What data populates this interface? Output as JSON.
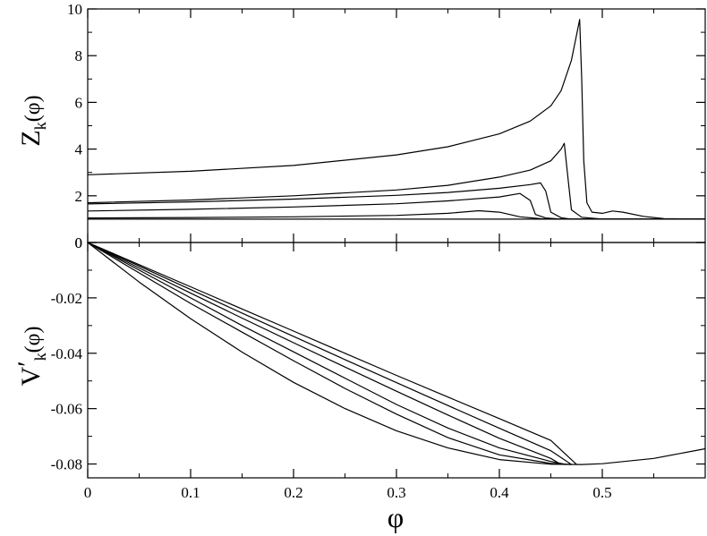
{
  "chart_data": [
    {
      "type": "line",
      "ylabel": "Z_k(φ)",
      "ylabel_main": "Z",
      "ylabel_sub": "k",
      "ylabel_arg": "(φ)",
      "xlim": [
        0,
        0.6
      ],
      "ylim": [
        0,
        10
      ],
      "yticks": [
        0,
        2,
        4,
        6,
        8,
        10
      ],
      "ytick_labels": [
        "0",
        "2",
        "4",
        "6",
        "8",
        "10"
      ],
      "grid": false,
      "series": [
        {
          "x": [
            0,
            0.1,
            0.2,
            0.3,
            0.4,
            0.6
          ],
          "y": [
            1.0,
            1.0,
            1.0,
            1.0,
            1.0,
            1.0
          ]
        },
        {
          "x": [
            0,
            0.1,
            0.2,
            0.3,
            0.35,
            0.38,
            0.4,
            0.42,
            0.44,
            0.46,
            0.6
          ],
          "y": [
            1.05,
            1.07,
            1.1,
            1.16,
            1.25,
            1.36,
            1.3,
            1.1,
            1.02,
            1.0,
            1.0
          ]
        },
        {
          "x": [
            0,
            0.1,
            0.2,
            0.3,
            0.35,
            0.4,
            0.42,
            0.43,
            0.435,
            0.445,
            0.46,
            0.6
          ],
          "y": [
            1.35,
            1.42,
            1.52,
            1.66,
            1.78,
            1.95,
            2.1,
            1.8,
            1.2,
            1.05,
            1.0,
            1.0
          ]
        },
        {
          "x": [
            0,
            0.1,
            0.2,
            0.3,
            0.35,
            0.4,
            0.43,
            0.44,
            0.445,
            0.45,
            0.46,
            0.47,
            0.6
          ],
          "y": [
            1.65,
            1.74,
            1.86,
            2.02,
            2.14,
            2.32,
            2.48,
            2.55,
            2.2,
            1.3,
            1.06,
            1.0,
            1.0
          ]
        },
        {
          "x": [
            0,
            0.1,
            0.2,
            0.3,
            0.35,
            0.4,
            0.43,
            0.45,
            0.46,
            0.463,
            0.467,
            0.47,
            0.48,
            0.5,
            0.6
          ],
          "y": [
            1.7,
            1.82,
            2.0,
            2.25,
            2.45,
            2.8,
            3.1,
            3.5,
            4.0,
            4.25,
            2.6,
            1.4,
            1.08,
            1.0,
            1.0
          ]
        },
        {
          "x": [
            0,
            0.1,
            0.2,
            0.3,
            0.35,
            0.4,
            0.43,
            0.45,
            0.46,
            0.47,
            0.475,
            0.478,
            0.48,
            0.482,
            0.485,
            0.49,
            0.5,
            0.51,
            0.52,
            0.54,
            0.56,
            0.6
          ],
          "y": [
            2.9,
            3.05,
            3.3,
            3.75,
            4.1,
            4.65,
            5.2,
            5.85,
            6.5,
            7.8,
            8.9,
            9.55,
            7.0,
            3.5,
            1.7,
            1.3,
            1.25,
            1.35,
            1.3,
            1.12,
            1.02,
            1.0
          ]
        }
      ]
    },
    {
      "type": "line",
      "xlabel": "φ",
      "ylabel": "V'_k(φ)",
      "ylabel_main": "V",
      "ylabel_prime": "′",
      "ylabel_sub": "k",
      "ylabel_arg": "(φ)",
      "xlim": [
        0,
        0.6
      ],
      "ylim": [
        -0.085,
        0
      ],
      "xticks": [
        0,
        0.1,
        0.2,
        0.3,
        0.4,
        0.5
      ],
      "xtick_labels": [
        "0",
        "0.1",
        "0.2",
        "0.3",
        "0.4",
        "0.5"
      ],
      "yticks": [
        -0.08,
        -0.06,
        -0.04,
        -0.02,
        0
      ],
      "ytick_labels": [
        "-0.08",
        "-0.06",
        "-0.04",
        "-0.02",
        "0"
      ],
      "grid": false,
      "series": [
        {
          "x": [
            0,
            0.05,
            0.1,
            0.15,
            0.2,
            0.25,
            0.3,
            0.35,
            0.4,
            0.45,
            0.48,
            0.5,
            0.55,
            0.6
          ],
          "y": [
            0,
            -0.0143,
            -0.0275,
            -0.0396,
            -0.0505,
            -0.06,
            -0.068,
            -0.0742,
            -0.0784,
            -0.0801,
            -0.0802,
            -0.0799,
            -0.078,
            -0.0745
          ]
        },
        {
          "x": [
            0,
            0.05,
            0.1,
            0.15,
            0.2,
            0.25,
            0.3,
            0.35,
            0.4,
            0.45,
            0.47
          ],
          "y": [
            0,
            -0.011,
            -0.022,
            -0.0324,
            -0.0427,
            -0.0527,
            -0.062,
            -0.0705,
            -0.0767,
            -0.0798,
            -0.0802
          ]
        },
        {
          "x": [
            0,
            0.05,
            0.1,
            0.15,
            0.2,
            0.25,
            0.3,
            0.35,
            0.4,
            0.45,
            0.465
          ],
          "y": [
            0,
            -0.01,
            -0.02,
            -0.03,
            -0.0395,
            -0.049,
            -0.0585,
            -0.067,
            -0.0742,
            -0.0791,
            -0.0802
          ]
        },
        {
          "x": [
            0,
            0.05,
            0.1,
            0.15,
            0.2,
            0.25,
            0.3,
            0.35,
            0.4,
            0.45,
            0.46
          ],
          "y": [
            0,
            -0.0092,
            -0.0183,
            -0.0273,
            -0.0362,
            -0.045,
            -0.0537,
            -0.0623,
            -0.0707,
            -0.078,
            -0.0802
          ]
        },
        {
          "x": [
            0,
            0.05,
            0.1,
            0.15,
            0.2,
            0.25,
            0.3,
            0.35,
            0.4,
            0.45,
            0.47
          ],
          "y": [
            0,
            -0.0085,
            -0.017,
            -0.0255,
            -0.0339,
            -0.0423,
            -0.0506,
            -0.0589,
            -0.0671,
            -0.0752,
            -0.0802
          ]
        },
        {
          "x": [
            0,
            0.05,
            0.1,
            0.15,
            0.2,
            0.25,
            0.3,
            0.35,
            0.4,
            0.45,
            0.475
          ],
          "y": [
            0,
            -0.008,
            -0.016,
            -0.024,
            -0.032,
            -0.04,
            -0.048,
            -0.0558,
            -0.0636,
            -0.0715,
            -0.0802
          ]
        }
      ]
    }
  ]
}
